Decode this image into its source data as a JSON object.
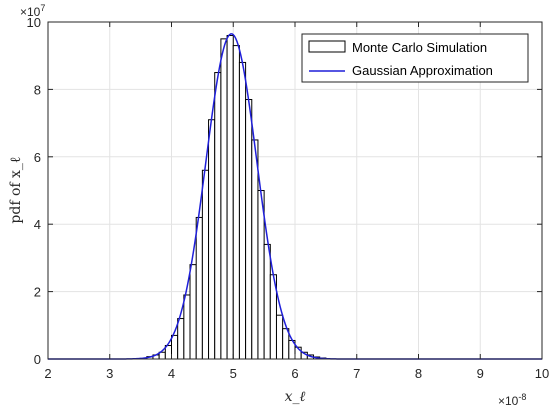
{
  "chart_data": {
    "type": "bar",
    "title": "",
    "xlabel": "x_ℓ",
    "ylabel": "pdf of x_ℓ",
    "x_scale_label": "×10",
    "x_scale_exp": "-8",
    "y_scale_label": "×10",
    "y_scale_exp": "7",
    "xlim": [
      2,
      10
    ],
    "ylim": [
      0,
      10
    ],
    "xticks": [
      2,
      3,
      4,
      5,
      6,
      7,
      8,
      9,
      10
    ],
    "yticks": [
      0,
      2,
      4,
      6,
      8,
      10
    ],
    "xtick_labels": [
      "2",
      "3",
      "4",
      "5",
      "6",
      "7",
      "8",
      "9",
      "10"
    ],
    "ytick_labels": [
      "0",
      "2",
      "4",
      "6",
      "8",
      "10"
    ],
    "grid": true,
    "legend_position": "top-right",
    "series": [
      {
        "name": "Monte Carlo Simulation",
        "kind": "histogram",
        "color": "#000000",
        "bin_width": 0.1,
        "bin_starts": [
          3.6,
          3.7,
          3.8,
          3.9,
          4.0,
          4.1,
          4.2,
          4.3,
          4.4,
          4.5,
          4.6,
          4.7,
          4.8,
          4.9,
          5.0,
          5.1,
          5.2,
          5.3,
          5.4,
          5.5,
          5.6,
          5.7,
          5.8,
          5.9,
          6.0,
          6.1,
          6.2,
          6.3,
          6.4
        ],
        "values": [
          0.07,
          0.12,
          0.2,
          0.4,
          0.7,
          1.2,
          1.9,
          2.8,
          4.2,
          5.6,
          7.1,
          8.5,
          9.5,
          9.6,
          9.3,
          8.8,
          7.7,
          6.5,
          5.0,
          3.4,
          2.5,
          1.3,
          0.9,
          0.55,
          0.35,
          0.2,
          0.12,
          0.06,
          0.03
        ]
      },
      {
        "name": "Gaussian Approximation",
        "kind": "line",
        "color": "#1f1fd9",
        "mean": 4.97,
        "std": 0.413,
        "peak": 9.65
      }
    ]
  },
  "legend_icons": [
    "bar-swatch-icon",
    "line-swatch-icon"
  ]
}
